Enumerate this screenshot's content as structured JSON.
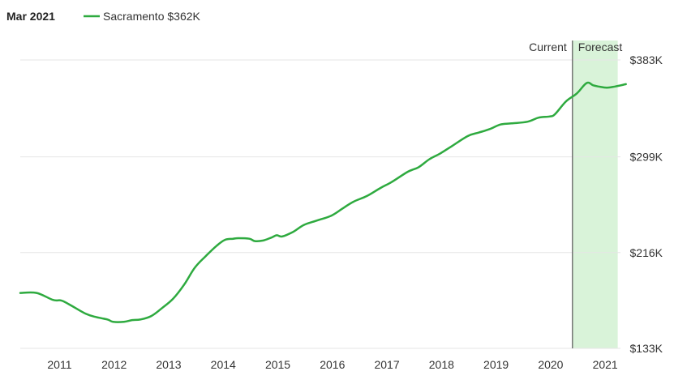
{
  "header": {
    "date_label": "Mar 2021",
    "series_label": "Sacramento $362K"
  },
  "colors": {
    "line": "#2eaa3f",
    "forecast_fill": "#d9f3d9",
    "grid": "#e6e6e6",
    "current_divider": "#555555"
  },
  "chart_data": {
    "type": "line",
    "title": "",
    "xlabel": "",
    "ylabel": "",
    "x_ticks": [
      "2011",
      "2012",
      "2013",
      "2014",
      "2015",
      "2016",
      "2017",
      "2018",
      "2019",
      "2020",
      "2021"
    ],
    "y_ticks": [
      "$383K",
      "$299K",
      "$216K",
      "$133K"
    ],
    "ylim": [
      133,
      383
    ],
    "xlim": [
      2010.3,
      2021.3
    ],
    "current_label": "Current",
    "forecast_label": "Forecast",
    "current_x": 2020.42,
    "forecast_end_x": 2021.25,
    "series": [
      {
        "name": "Sacramento",
        "value_label": "$362K",
        "points": [
          [
            2010.3,
            181
          ],
          [
            2010.6,
            181
          ],
          [
            2010.9,
            175
          ],
          [
            2011.05,
            174.5
          ],
          [
            2011.2,
            171
          ],
          [
            2011.5,
            163
          ],
          [
            2011.7,
            160
          ],
          [
            2011.9,
            158
          ],
          [
            2012.0,
            156
          ],
          [
            2012.2,
            156
          ],
          [
            2012.35,
            157.5
          ],
          [
            2012.5,
            158
          ],
          [
            2012.7,
            161
          ],
          [
            2012.9,
            168
          ],
          [
            2013.1,
            176
          ],
          [
            2013.3,
            188
          ],
          [
            2013.5,
            203
          ],
          [
            2013.7,
            213
          ],
          [
            2013.9,
            222
          ],
          [
            2014.05,
            227
          ],
          [
            2014.2,
            228
          ],
          [
            2014.3,
            228.5
          ],
          [
            2014.5,
            228
          ],
          [
            2014.6,
            226
          ],
          [
            2014.75,
            226.5
          ],
          [
            2014.9,
            229
          ],
          [
            2015.0,
            231
          ],
          [
            2015.1,
            230
          ],
          [
            2015.3,
            234
          ],
          [
            2015.5,
            240
          ],
          [
            2015.75,
            244
          ],
          [
            2016.0,
            248
          ],
          [
            2016.2,
            254
          ],
          [
            2016.4,
            260
          ],
          [
            2016.65,
            265
          ],
          [
            2016.9,
            272
          ],
          [
            2017.1,
            277
          ],
          [
            2017.4,
            286
          ],
          [
            2017.6,
            290
          ],
          [
            2017.8,
            297
          ],
          [
            2018.0,
            302
          ],
          [
            2018.2,
            308
          ],
          [
            2018.5,
            317
          ],
          [
            2018.7,
            320
          ],
          [
            2018.9,
            323
          ],
          [
            2019.1,
            327
          ],
          [
            2019.3,
            328
          ],
          [
            2019.6,
            329.5
          ],
          [
            2019.8,
            333
          ],
          [
            2020.0,
            334
          ],
          [
            2020.1,
            336
          ],
          [
            2020.3,
            347
          ],
          [
            2020.5,
            354
          ],
          [
            2020.68,
            363
          ],
          [
            2020.8,
            361
          ],
          [
            2020.9,
            360
          ],
          [
            2021.05,
            359
          ],
          [
            2021.2,
            360
          ],
          [
            2021.4,
            362
          ]
        ]
      }
    ],
    "grid": true,
    "legend_position": "top-left"
  }
}
